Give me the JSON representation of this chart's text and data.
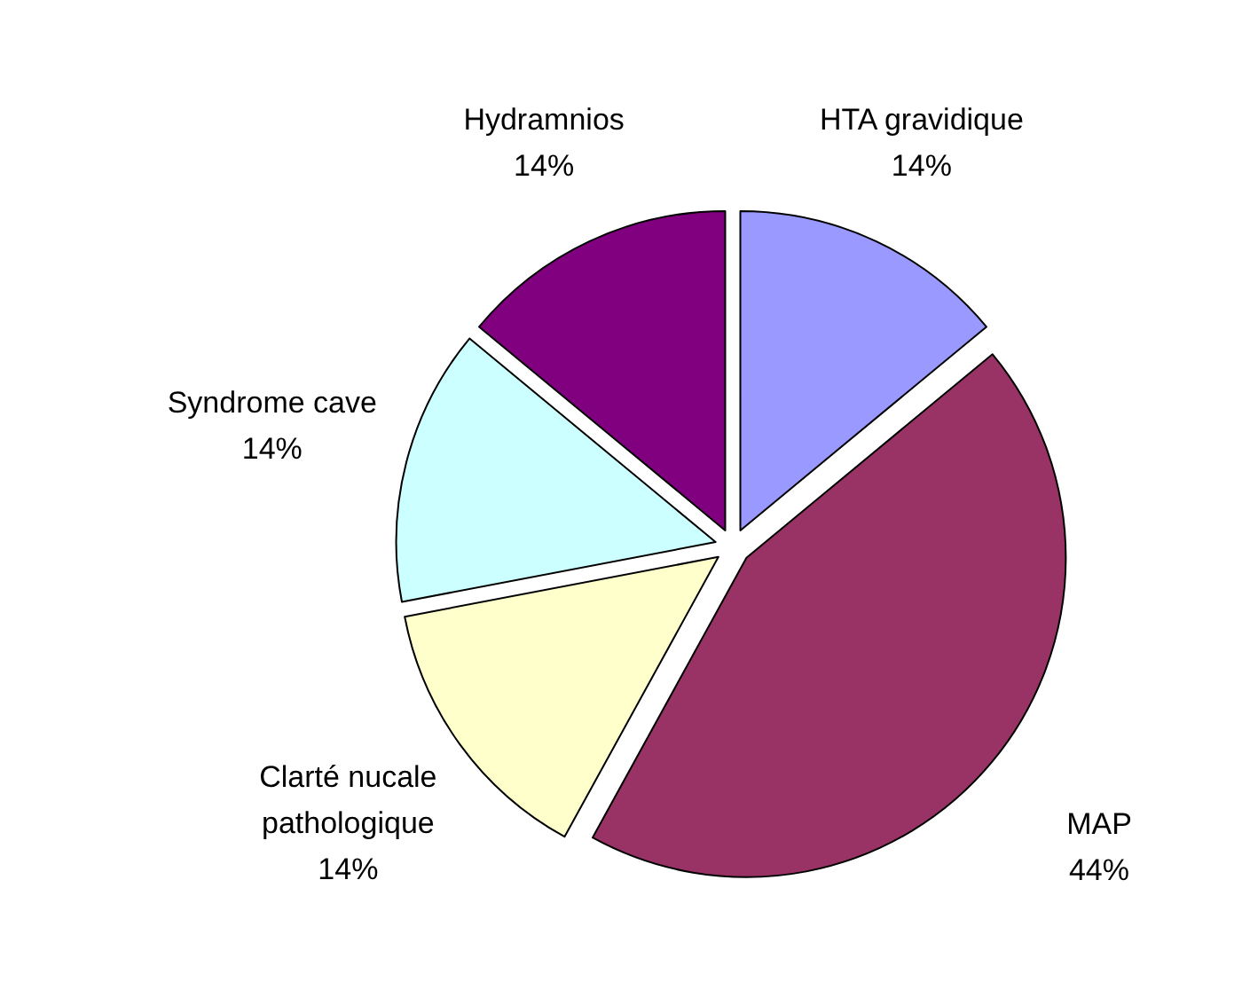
{
  "chart_data": {
    "type": "pie",
    "categories": [
      "HTA gravidique",
      "MAP",
      "Clarté nucale pathologique",
      "Syndrome cave",
      "Hydramnios"
    ],
    "values": [
      14,
      44,
      14,
      14,
      14
    ],
    "value_labels": [
      "14%",
      "44%",
      "14%",
      "14%",
      "14%"
    ],
    "colors": [
      "#9999ff",
      "#993366",
      "#ffffcc",
      "#ccffff",
      "#800080"
    ],
    "legend": false
  }
}
